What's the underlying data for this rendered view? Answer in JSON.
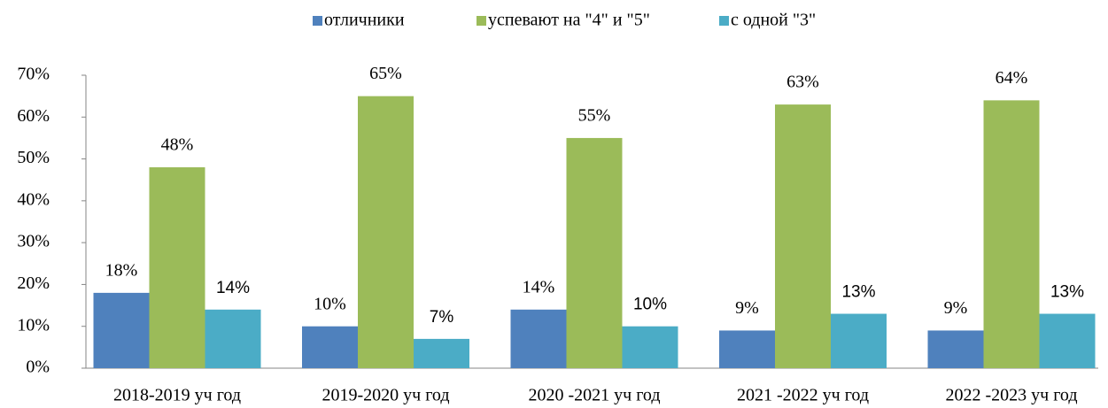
{
  "chart_data": {
    "type": "bar",
    "categories": [
      "2018-2019 уч год",
      "2019-2020 уч год",
      "2020 -2021 уч год",
      "2021 -2022 уч год",
      "2022 -2023 уч год"
    ],
    "series": [
      {
        "name": "отличники",
        "color": "#4f81bd",
        "values": [
          18,
          10,
          14,
          9,
          9
        ],
        "value_labels": [
          "18%",
          "10%",
          "14%",
          "9%",
          "9%"
        ]
      },
      {
        "name": "успевают на \"4\" и \"5\"",
        "color": "#9bbb59",
        "values": [
          48,
          65,
          55,
          63,
          64
        ],
        "value_labels": [
          "48%",
          "65%",
          "55%",
          "63%",
          "64%"
        ]
      },
      {
        "name": "с одной \"3\"",
        "color": "#4bacc6",
        "values": [
          14,
          7,
          10,
          13,
          13
        ],
        "value_labels": [
          "14%",
          "7%",
          "10%",
          "13%",
          "13%"
        ]
      }
    ],
    "ylim": [
      0,
      70
    ],
    "yticks": [
      {
        "value": 0,
        "label": "0%"
      },
      {
        "value": 10,
        "label": "10%"
      },
      {
        "value": 20,
        "label": "20%"
      },
      {
        "value": 30,
        "label": "30%"
      },
      {
        "value": 40,
        "label": "40%"
      },
      {
        "value": 50,
        "label": "50%"
      },
      {
        "value": 60,
        "label": "60%"
      },
      {
        "value": 70,
        "label": "70%"
      }
    ],
    "legend": "top",
    "grid": false
  }
}
